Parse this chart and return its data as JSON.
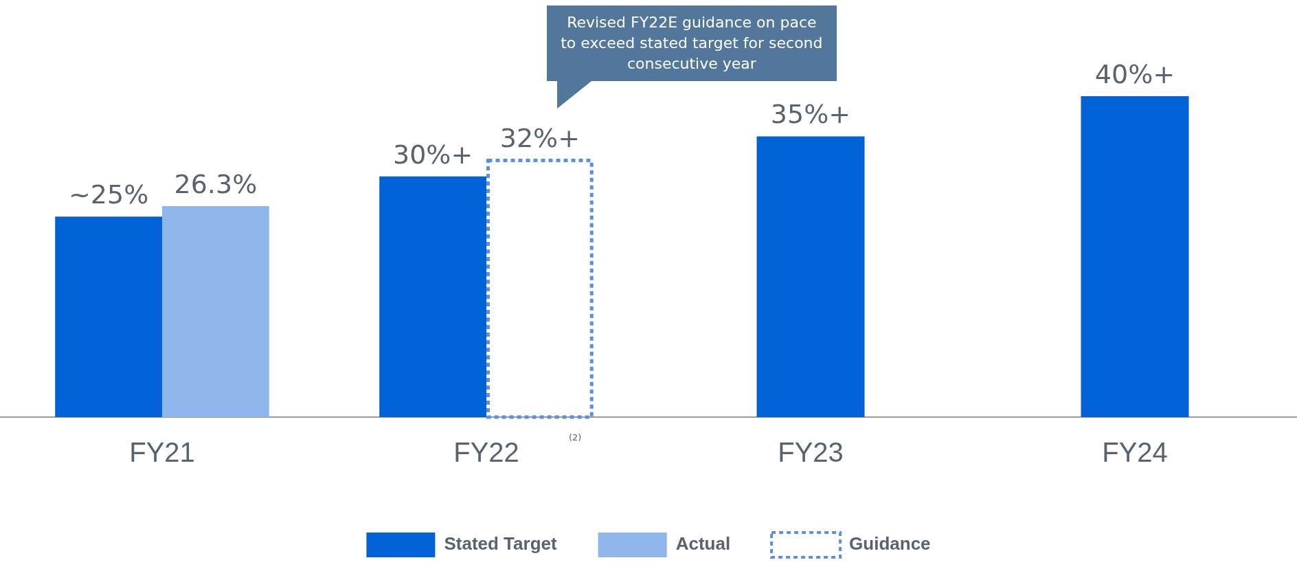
{
  "chart_data": {
    "type": "bar",
    "categories": [
      "FY21",
      "FY22",
      "FY23",
      "FY24"
    ],
    "series": [
      {
        "name": "Stated Target",
        "color": "#0062d6",
        "values": [
          25,
          30,
          35,
          40
        ],
        "value_labels": [
          "~25%",
          "30%+",
          "35%+",
          "40%+"
        ]
      },
      {
        "name": "Actual",
        "color": "#8fb6ea",
        "values": [
          26.3,
          null,
          null,
          null
        ],
        "value_labels": [
          "26.3%",
          null,
          null,
          null
        ]
      },
      {
        "name": "Guidance",
        "color": "#5b8fe0",
        "line_style": "dotted",
        "values": [
          null,
          32,
          null,
          null
        ],
        "value_labels": [
          null,
          "32%+",
          null,
          null
        ]
      }
    ],
    "legend": "bottom",
    "grid": false,
    "annotations": [
      "Revised FY22E guidance on pace to exceed stated target for second consecutive year",
      "(2)"
    ]
  }
}
